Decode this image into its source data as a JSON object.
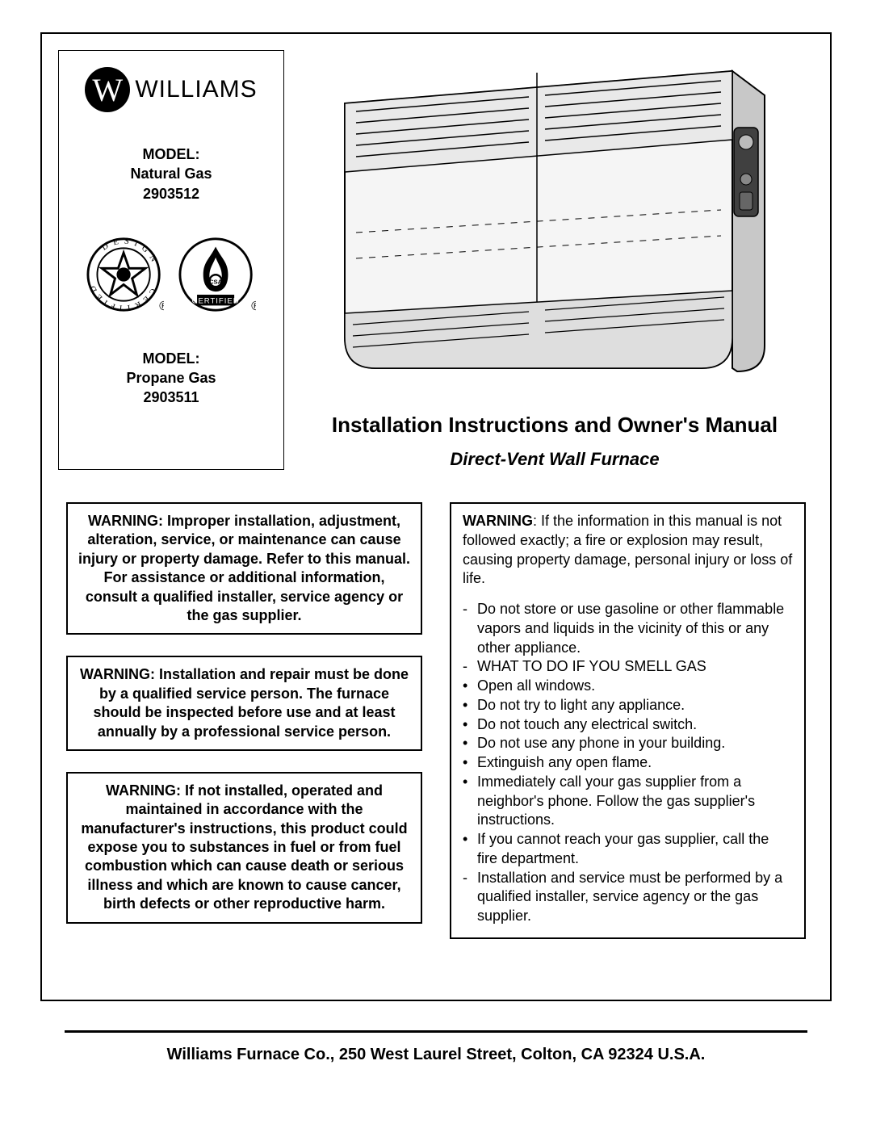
{
  "brand": {
    "mark": "W",
    "name": "WILLIAMS"
  },
  "models": {
    "label": "MODEL:",
    "natural_gas": {
      "fuel": "Natural Gas",
      "number": "2903512"
    },
    "propane": {
      "fuel": "Propane Gas",
      "number": "2903511"
    }
  },
  "cert_badges": {
    "design_text": "DESIGN CERTIFIED",
    "csa_text": "CERTIFIED"
  },
  "titles": {
    "main": "Installation Instructions and Owner's Manual",
    "sub": "Direct-Vent Wall Furnace"
  },
  "warnings_left": {
    "w1": "WARNING:  Improper installation, adjustment, alteration, service, or maintenance can cause injury or property damage.  Refer to this manual.  For assistance or additional information, consult a qualified installer, service agency or the gas supplier.",
    "w2": "WARNING:  Installation and repair must be done by a qualified service person.  The furnace should be inspected before use and at least annually by a professional service person.",
    "w3": "WARNING:  If not installed, operated and maintained in accordance with the manufacturer's instructions, this product could expose you to substances in fuel or from fuel combustion which can cause death or serious illness and which are known to cause cancer, birth defects or other reproductive harm."
  },
  "warning_right": {
    "header_label": "WARNING",
    "header_rest": ":  If the information in this manual is not followed exactly; a fire or explosion may result, causing property damage, personal injury or loss of life.",
    "items": [
      {
        "mark": "-",
        "text": "Do not store or use gasoline or other flammable vapors and liquids in the vicinity of this or any other appliance."
      },
      {
        "mark": "-",
        "text": "WHAT TO DO IF YOU SMELL GAS"
      },
      {
        "mark": "•",
        "text": "Open all windows."
      },
      {
        "mark": "•",
        "text": "Do not try to light any appliance."
      },
      {
        "mark": "•",
        "text": "Do not touch any electrical switch."
      },
      {
        "mark": "•",
        "text": "Do not use any phone in your building."
      },
      {
        "mark": "•",
        "text": "Extinguish any open flame."
      },
      {
        "mark": "•",
        "text": "Immediately call your gas supplier from a neighbor's phone.  Follow the gas supplier's instructions."
      },
      {
        "mark": "•",
        "text": "If you cannot reach your gas supplier, call the fire department."
      },
      {
        "mark": "-",
        "text": "Installation and service must be performed by a qualified installer, service agency or the gas supplier."
      }
    ]
  },
  "footer": "Williams Furnace Co., 250 West Laurel Street, Colton, CA 92324   U.S.A.",
  "furnace_illustration": {
    "type": "line-drawing",
    "stroke": "#000000",
    "fill_light": "#f5f5f5",
    "fill_shadow": "#c8c8c8",
    "control_panel_fill": "#404040"
  }
}
